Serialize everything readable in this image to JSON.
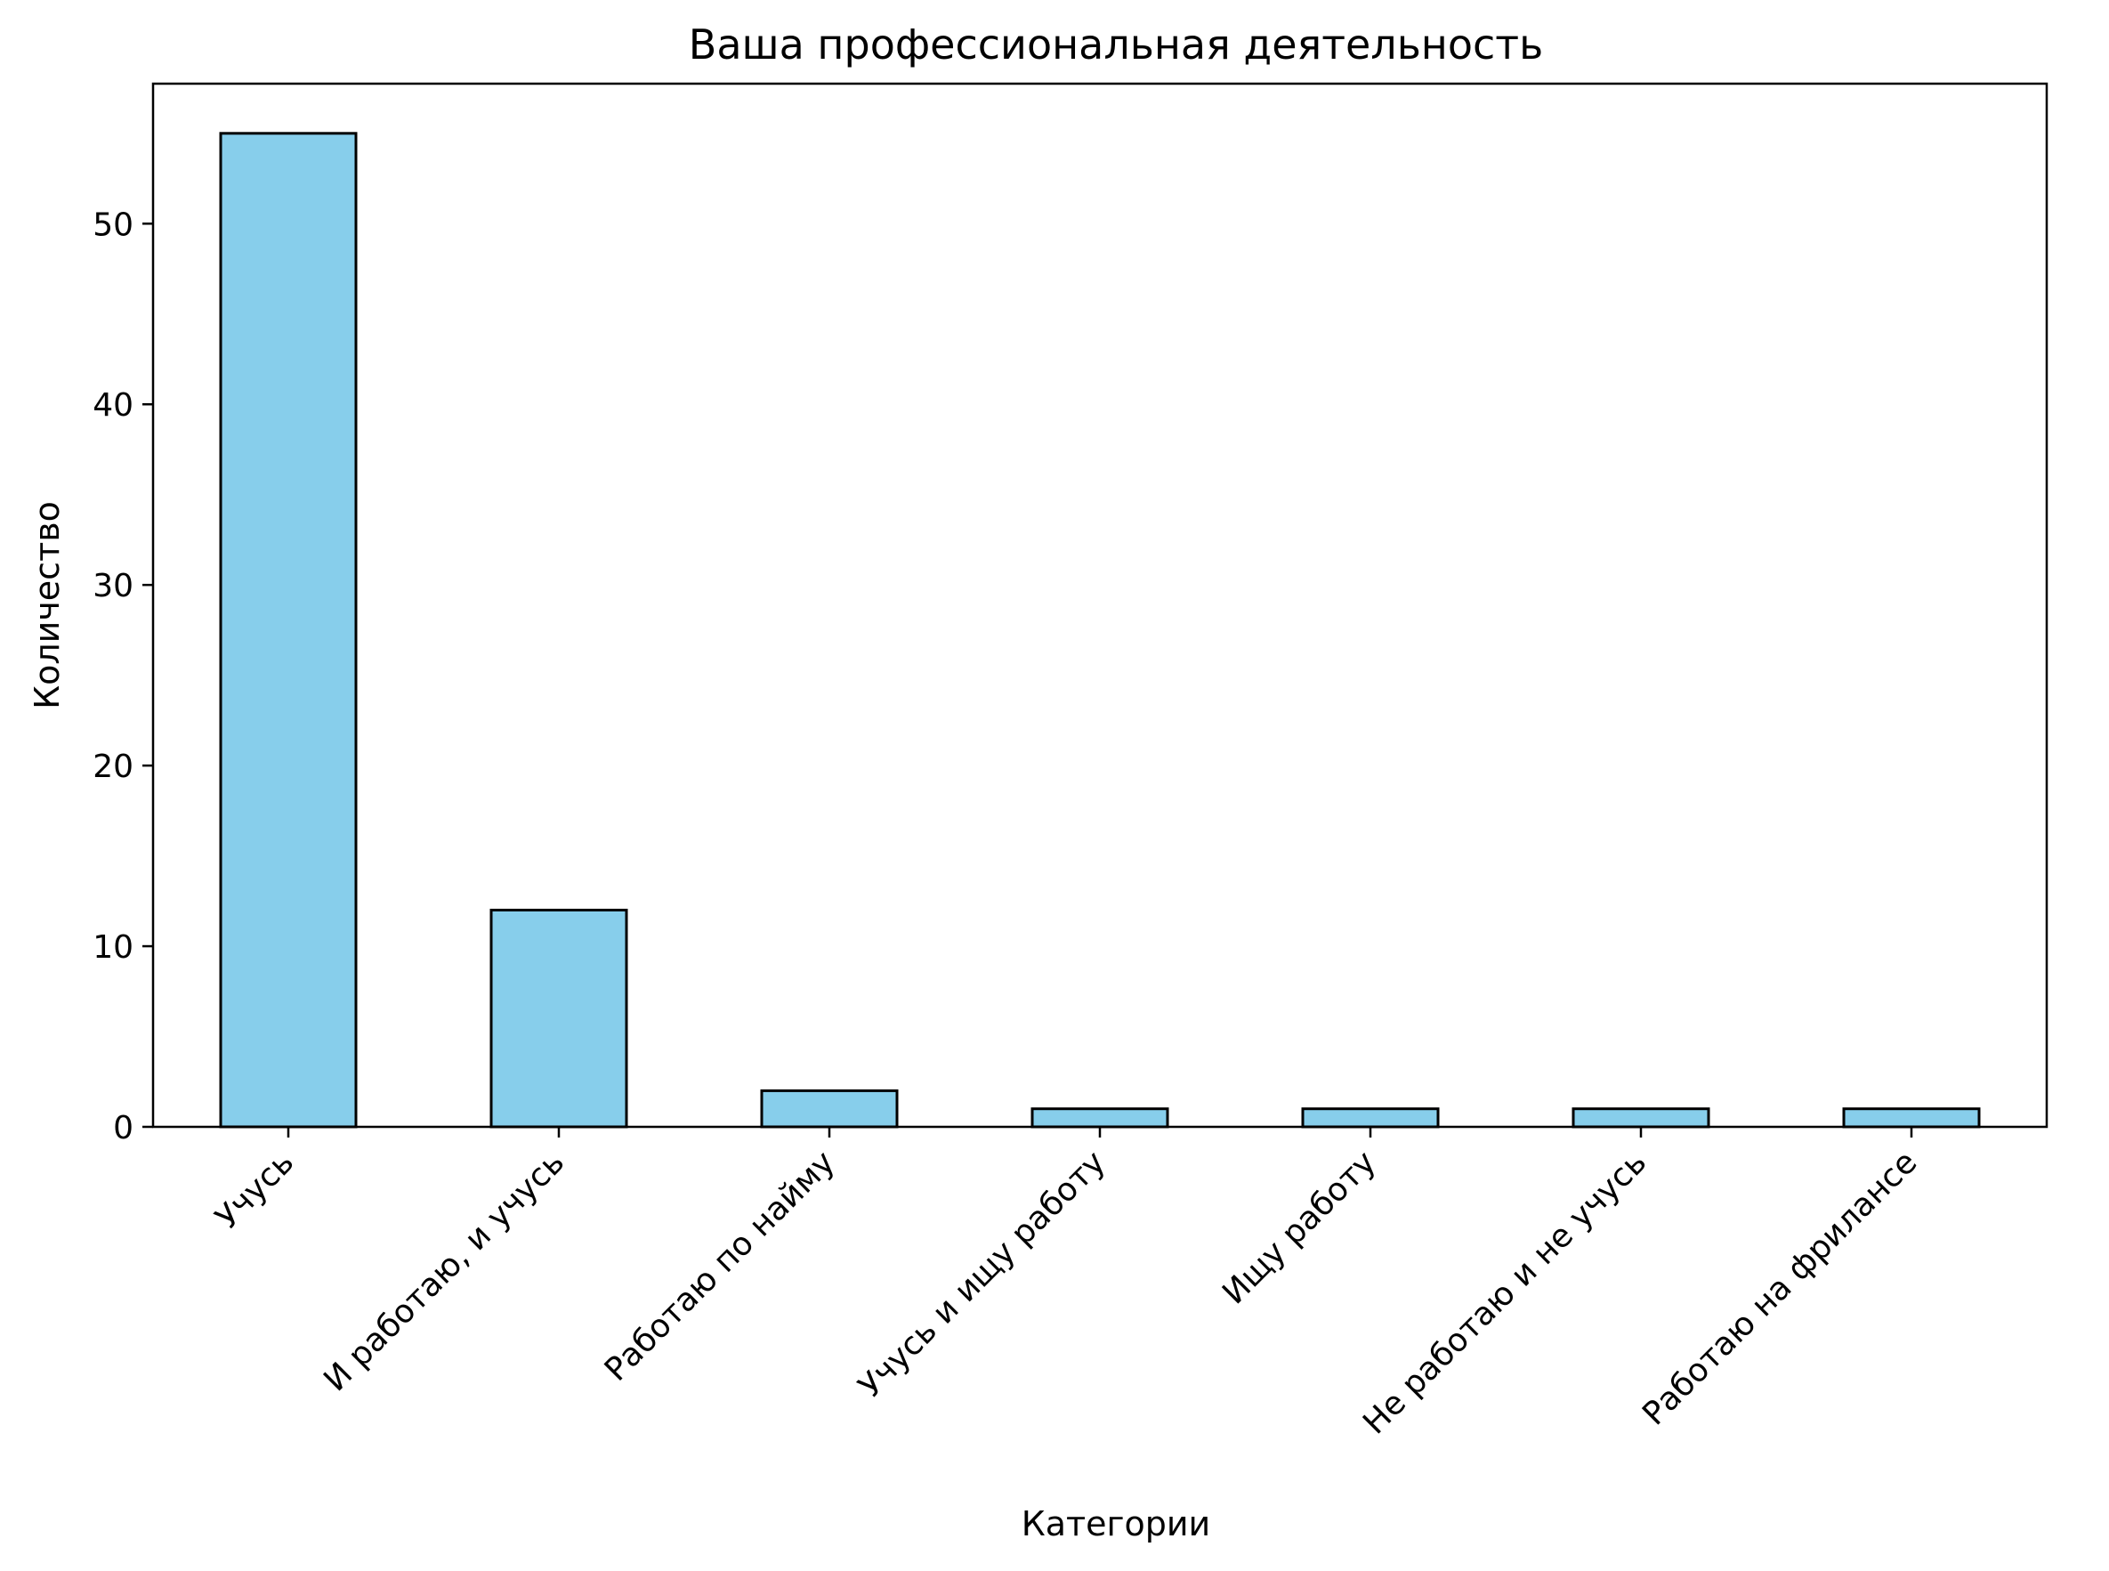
{
  "chart_data": {
    "type": "bar",
    "title": "Ваша профессиональная деятельность",
    "xlabel": "Категории",
    "ylabel": "Количество",
    "categories": [
      "Учусь",
      "И работаю, и учусь",
      "Работаю по найму",
      "Учусь и ищу работу",
      "Ищу работу",
      "Не работаю и не учусь",
      "Работаю на фрилансе"
    ],
    "values": [
      55,
      12,
      2,
      1,
      1,
      1,
      1
    ],
    "ylim": [
      0,
      57.75
    ],
    "yticks": [
      0,
      10,
      20,
      30,
      40,
      50
    ],
    "grid": false,
    "legend": "none",
    "colors": {
      "bar_fill": "#87CEEB",
      "bar_edge": "#000000",
      "axis": "#000000",
      "text": "#000000"
    }
  }
}
